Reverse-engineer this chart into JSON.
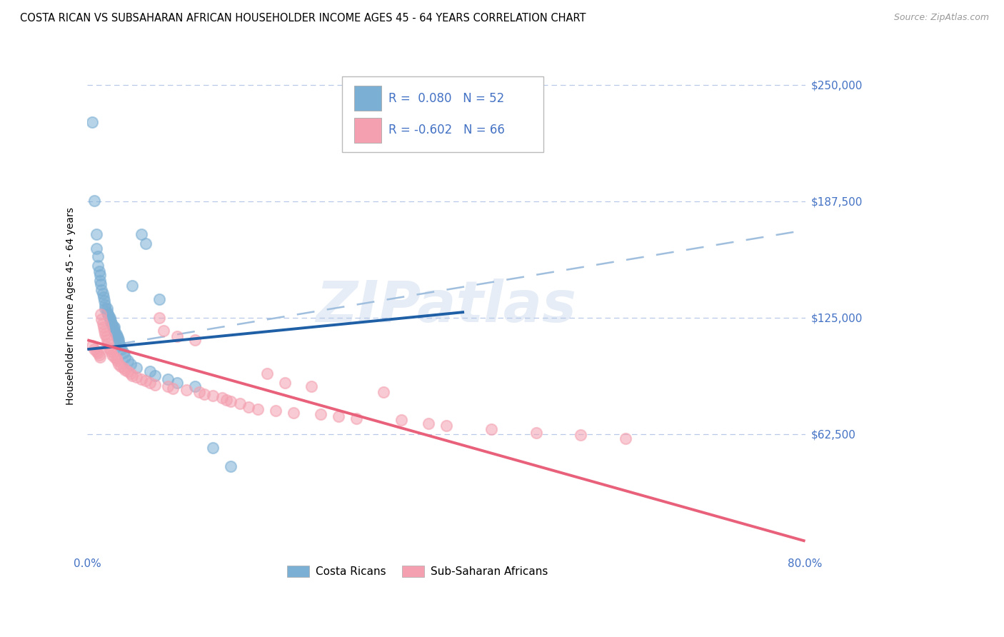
{
  "title": "COSTA RICAN VS SUBSAHARAN AFRICAN HOUSEHOLDER INCOME AGES 45 - 64 YEARS CORRELATION CHART",
  "source": "Source: ZipAtlas.com",
  "ylabel": "Householder Income Ages 45 - 64 years",
  "xlim": [
    0.0,
    0.8
  ],
  "ylim": [
    0,
    262500
  ],
  "yticks": [
    0,
    62500,
    125000,
    187500,
    250000
  ],
  "ytick_labels": [
    "",
    "$62,500",
    "$125,000",
    "$187,500",
    "$250,000"
  ],
  "xticks": [
    0.0,
    0.1,
    0.2,
    0.3,
    0.4,
    0.5,
    0.6,
    0.7,
    0.8
  ],
  "xtick_labels": [
    "0.0%",
    "",
    "",
    "",
    "",
    "",
    "",
    "",
    "80.0%"
  ],
  "blue_color": "#7BAFD4",
  "pink_color": "#F4A0B0",
  "blue_line_color": "#1F5FA6",
  "pink_line_color": "#E8607A",
  "dash_line_color": "#A0BEDD",
  "axis_color": "#4472C4",
  "grid_color": "#B8C8E8",
  "watermark": "ZIPatlas",
  "blue_scatter": [
    [
      0.005,
      230000
    ],
    [
      0.008,
      188000
    ],
    [
      0.01,
      170000
    ],
    [
      0.01,
      162000
    ],
    [
      0.012,
      158000
    ],
    [
      0.012,
      153000
    ],
    [
      0.013,
      150000
    ],
    [
      0.014,
      148000
    ],
    [
      0.014,
      145000
    ],
    [
      0.015,
      143000
    ],
    [
      0.016,
      140000
    ],
    [
      0.017,
      138000
    ],
    [
      0.018,
      136000
    ],
    [
      0.019,
      134000
    ],
    [
      0.02,
      132000
    ],
    [
      0.02,
      130000
    ],
    [
      0.022,
      130000
    ],
    [
      0.022,
      128000
    ],
    [
      0.023,
      127000
    ],
    [
      0.024,
      126000
    ],
    [
      0.025,
      125000
    ],
    [
      0.025,
      124000
    ],
    [
      0.026,
      123000
    ],
    [
      0.027,
      122000
    ],
    [
      0.028,
      121000
    ],
    [
      0.029,
      120000
    ],
    [
      0.03,
      120000
    ],
    [
      0.03,
      118000
    ],
    [
      0.031,
      117000
    ],
    [
      0.032,
      116000
    ],
    [
      0.033,
      115000
    ],
    [
      0.034,
      114000
    ],
    [
      0.035,
      113000
    ],
    [
      0.035,
      112000
    ],
    [
      0.036,
      110000
    ],
    [
      0.038,
      108000
    ],
    [
      0.04,
      106000
    ],
    [
      0.042,
      104000
    ],
    [
      0.045,
      102000
    ],
    [
      0.048,
      100000
    ],
    [
      0.05,
      142000
    ],
    [
      0.055,
      98000
    ],
    [
      0.06,
      170000
    ],
    [
      0.065,
      165000
    ],
    [
      0.07,
      96000
    ],
    [
      0.075,
      94000
    ],
    [
      0.08,
      135000
    ],
    [
      0.09,
      92000
    ],
    [
      0.1,
      90000
    ],
    [
      0.12,
      88000
    ],
    [
      0.14,
      55000
    ],
    [
      0.16,
      45000
    ]
  ],
  "pink_scatter": [
    [
      0.005,
      110000
    ],
    [
      0.008,
      108000
    ],
    [
      0.01,
      107000
    ],
    [
      0.012,
      106000
    ],
    [
      0.013,
      105000
    ],
    [
      0.014,
      104000
    ],
    [
      0.015,
      127000
    ],
    [
      0.016,
      124000
    ],
    [
      0.017,
      122000
    ],
    [
      0.018,
      120000
    ],
    [
      0.019,
      118000
    ],
    [
      0.02,
      116000
    ],
    [
      0.021,
      115000
    ],
    [
      0.022,
      113000
    ],
    [
      0.023,
      111000
    ],
    [
      0.024,
      109000
    ],
    [
      0.025,
      108000
    ],
    [
      0.026,
      107000
    ],
    [
      0.028,
      105000
    ],
    [
      0.03,
      104000
    ],
    [
      0.032,
      103000
    ],
    [
      0.033,
      102000
    ],
    [
      0.035,
      100000
    ],
    [
      0.037,
      99000
    ],
    [
      0.04,
      98000
    ],
    [
      0.042,
      97000
    ],
    [
      0.045,
      96000
    ],
    [
      0.048,
      95000
    ],
    [
      0.05,
      94000
    ],
    [
      0.055,
      93000
    ],
    [
      0.06,
      92000
    ],
    [
      0.065,
      91000
    ],
    [
      0.07,
      90000
    ],
    [
      0.075,
      89000
    ],
    [
      0.08,
      125000
    ],
    [
      0.085,
      118000
    ],
    [
      0.09,
      88000
    ],
    [
      0.095,
      87000
    ],
    [
      0.1,
      115000
    ],
    [
      0.11,
      86000
    ],
    [
      0.12,
      113000
    ],
    [
      0.125,
      85000
    ],
    [
      0.13,
      84000
    ],
    [
      0.14,
      83000
    ],
    [
      0.15,
      82000
    ],
    [
      0.155,
      81000
    ],
    [
      0.16,
      80000
    ],
    [
      0.17,
      79000
    ],
    [
      0.18,
      77000
    ],
    [
      0.19,
      76000
    ],
    [
      0.2,
      95000
    ],
    [
      0.21,
      75000
    ],
    [
      0.22,
      90000
    ],
    [
      0.23,
      74000
    ],
    [
      0.25,
      88000
    ],
    [
      0.26,
      73000
    ],
    [
      0.28,
      72000
    ],
    [
      0.3,
      71000
    ],
    [
      0.33,
      85000
    ],
    [
      0.35,
      70000
    ],
    [
      0.38,
      68000
    ],
    [
      0.4,
      67000
    ],
    [
      0.45,
      65000
    ],
    [
      0.5,
      63000
    ],
    [
      0.55,
      62000
    ],
    [
      0.6,
      60000
    ]
  ],
  "blue_line_x": [
    0.0,
    0.42
  ],
  "blue_line_y": [
    108000,
    128000
  ],
  "pink_line_x": [
    0.0,
    0.8
  ],
  "pink_line_y": [
    113000,
    5000
  ],
  "dash_line_x": [
    0.0,
    0.8
  ],
  "dash_line_y": [
    108000,
    172000
  ]
}
